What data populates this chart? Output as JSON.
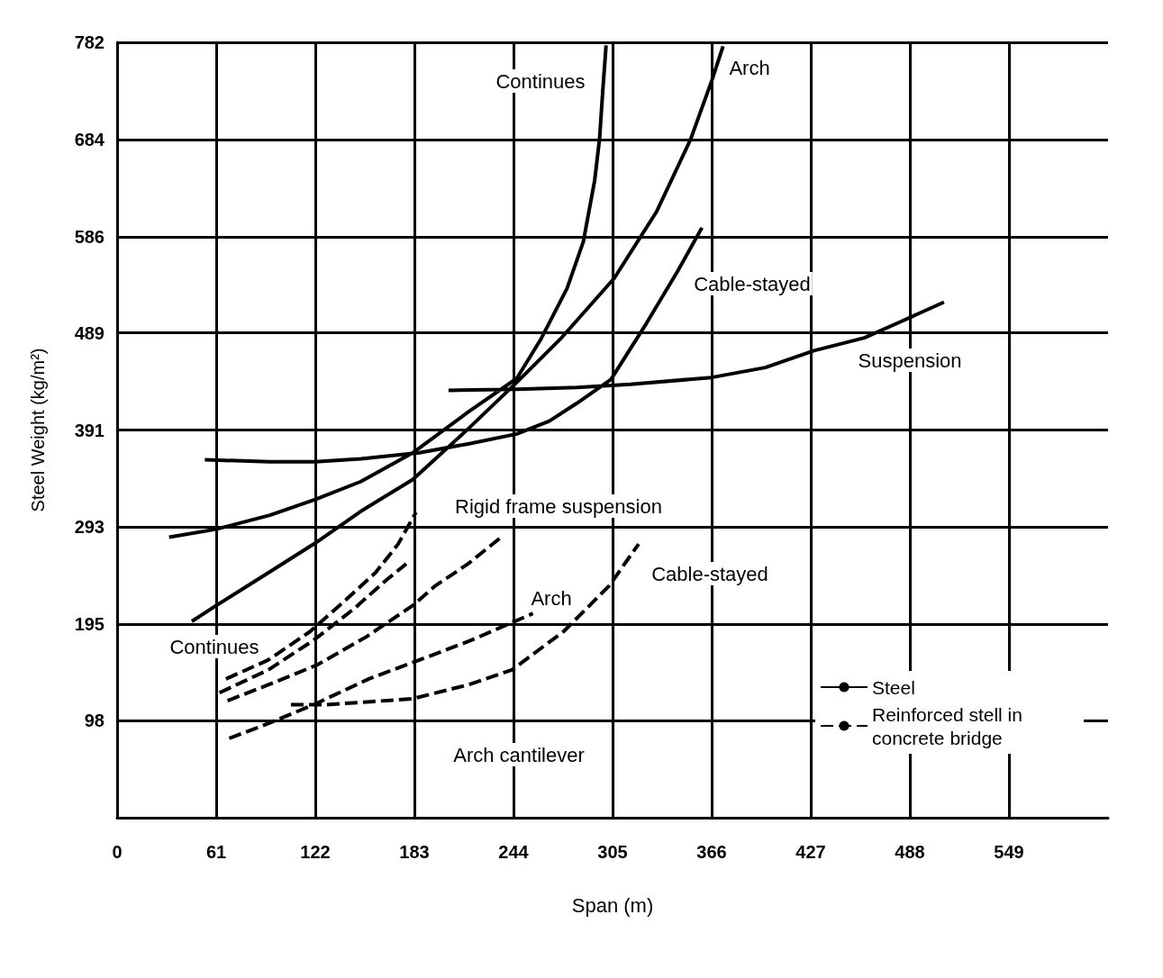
{
  "chart_data": {
    "type": "line",
    "xlabel": "Span (m)",
    "ylabel": "Steel Weight (kg/m²)",
    "xlim": [
      0,
      610
    ],
    "xticks": [
      0,
      61,
      122,
      183,
      244,
      305,
      366,
      427,
      488,
      549
    ],
    "ylim": [
      0,
      782
    ],
    "yticks": [
      98,
      195,
      293,
      391,
      489,
      586,
      684,
      782
    ],
    "grid": true,
    "legend": "bottom right",
    "marker": "none",
    "series": [
      {
        "name": "Steel",
        "color": "#000000",
        "line_style": "solid",
        "x": [
          32,
          61,
          94,
          122,
          150,
          182,
          216,
          246,
          261,
          277,
          287,
          294,
          297,
          299,
          301,
          null,
          46,
          61,
          94,
          122,
          150,
          182,
          216,
          246,
          273,
          306,
          332,
          353,
          366,
          373,
          null,
          54,
          94,
          122,
          150,
          186,
          216,
          246,
          266,
          283,
          304,
          326,
          345,
          360,
          null,
          204,
          246,
          283,
          316,
          366,
          399,
          429,
          460,
          482,
          509
        ],
        "values": [
          283,
          291,
          305,
          321,
          339,
          368,
          409,
          443,
          483,
          534,
          581,
          643,
          685,
          734,
          779,
          null,
          198,
          214,
          248,
          277,
          309,
          341,
          392,
          439,
          483,
          544,
          611,
          684,
          743,
          778,
          null,
          361,
          359,
          359,
          362,
          368,
          377,
          387,
          400,
          418,
          442,
          499,
          551,
          595,
          null,
          431,
          432,
          434,
          437,
          444,
          454,
          471,
          484,
          500,
          520
        ]
      },
      {
        "name": "Reinforced stell in concrete bridge",
        "color": "#000000",
        "line_style": "dashed",
        "x": [
          67,
          93,
          119,
          139,
          159,
          173,
          184,
          null,
          63,
          93,
          121,
          146,
          166,
          178,
          null,
          68,
          93,
          123,
          153,
          182,
          196,
          216,
          238,
          null,
          69,
          93,
          121,
          155,
          186,
          218,
          256,
          null,
          107,
          129,
          156,
          182,
          216,
          243,
          275,
          303,
          321
        ],
        "values": [
          140,
          159,
          188,
          217,
          247,
          276,
          308,
          null,
          126,
          149,
          179,
          211,
          240,
          256,
          null,
          118,
          134,
          154,
          182,
          214,
          234,
          256,
          285,
          null,
          80,
          95,
          114,
          140,
          159,
          179,
          206,
          null,
          114,
          114,
          117,
          120,
          134,
          149,
          188,
          234,
          276
        ]
      }
    ],
    "annotations": [
      "Continues",
      "Arch",
      "Cable-stayed",
      "Suspension",
      "Rigid frame suspension",
      "Cable-stayed",
      "Arch",
      "Continues",
      "Arch cantilever"
    ]
  }
}
